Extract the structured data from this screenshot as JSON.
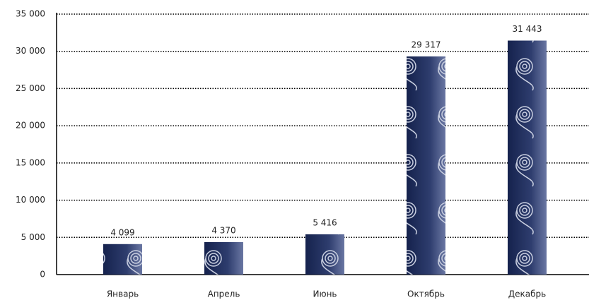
{
  "chart_data": {
    "type": "bar",
    "categories": [
      "Январь",
      "Апрель",
      "Июнь",
      "Октябрь",
      "Декабрь"
    ],
    "values": [
      4099,
      4370,
      5416,
      29317,
      31443
    ],
    "value_labels": [
      "4 099",
      "4 370",
      "5 416",
      "29 317",
      "31 443"
    ],
    "color": "#1f2d5c",
    "ylim": [
      0,
      35000
    ],
    "yticks": [
      0,
      {
        "value": 5000,
        "label": "5 000"
      },
      {
        "value": 10000,
        "label": "10 000"
      },
      {
        "value": 15000,
        "label": "15 000"
      },
      {
        "value": 20000,
        "label": "20 000"
      },
      {
        "value": 25000,
        "label": "25 000"
      },
      {
        "value": 30000,
        "label": "30 000"
      },
      {
        "value": 35000,
        "label": "35 000"
      }
    ],
    "grid": true
  }
}
